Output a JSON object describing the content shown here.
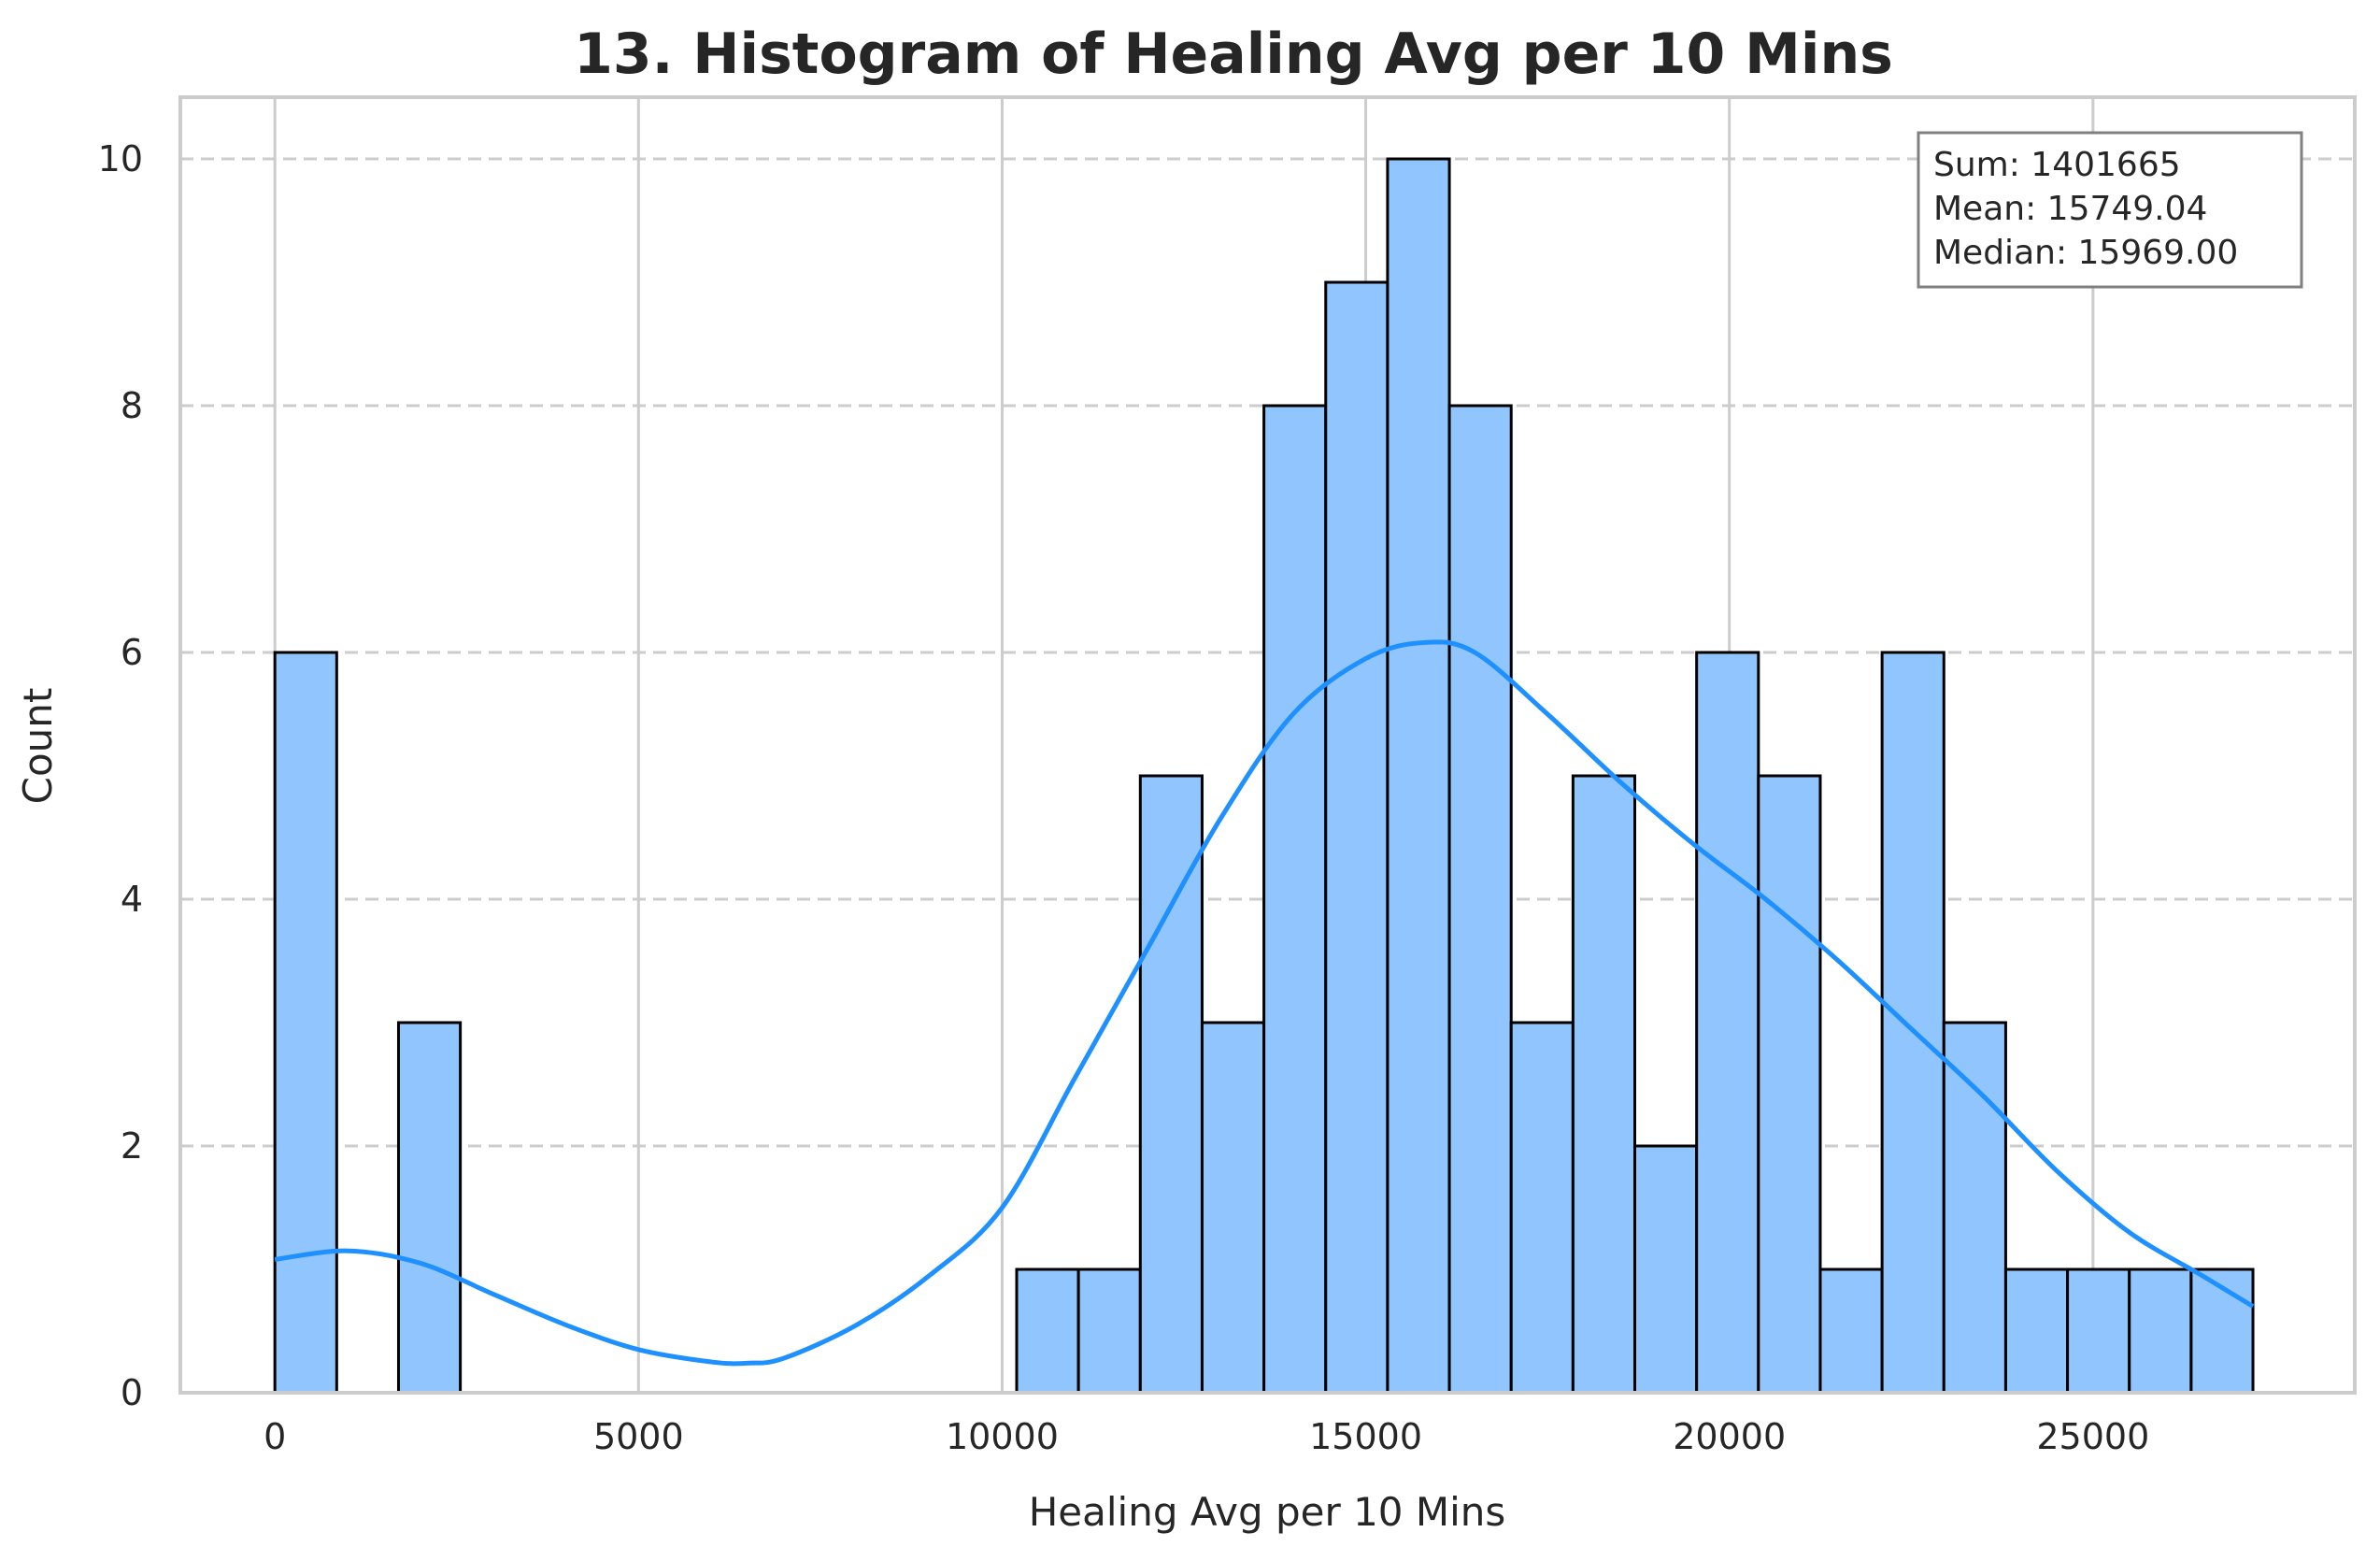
{
  "chart_data": {
    "type": "bar",
    "title": "13. Histogram of Healing Avg per 10 Mins",
    "xlabel": "Healing Avg per 10 Mins",
    "ylabel": "Count",
    "xlim": [
      -1300,
      28600
    ],
    "ylim": [
      0,
      10.5
    ],
    "xticks": [
      0,
      5000,
      10000,
      15000,
      20000,
      25000
    ],
    "yticks": [
      0,
      2,
      4,
      6,
      8,
      10
    ],
    "grid": true,
    "bin_start": 0,
    "bin_width": 850,
    "bins": [
      {
        "x0": 0,
        "count": 6
      },
      {
        "x0": 1700,
        "count": 3
      },
      {
        "x0": 10200,
        "count": 1
      },
      {
        "x0": 11050,
        "count": 1
      },
      {
        "x0": 11900,
        "count": 5
      },
      {
        "x0": 12750,
        "count": 3
      },
      {
        "x0": 13600,
        "count": 8
      },
      {
        "x0": 14450,
        "count": 9
      },
      {
        "x0": 15300,
        "count": 10
      },
      {
        "x0": 16150,
        "count": 8
      },
      {
        "x0": 17000,
        "count": 3
      },
      {
        "x0": 17850,
        "count": 5
      },
      {
        "x0": 18700,
        "count": 2
      },
      {
        "x0": 19550,
        "count": 6
      },
      {
        "x0": 20400,
        "count": 5
      },
      {
        "x0": 21250,
        "count": 1
      },
      {
        "x0": 22100,
        "count": 6
      },
      {
        "x0": 22950,
        "count": 3
      },
      {
        "x0": 23800,
        "count": 1
      },
      {
        "x0": 24650,
        "count": 1
      },
      {
        "x0": 25500,
        "count": 1
      },
      {
        "x0": 26350,
        "count": 1
      }
    ],
    "kde": {
      "x": [
        0,
        1000,
        2000,
        3000,
        4000,
        5000,
        6000,
        6500,
        7000,
        8000,
        9000,
        10000,
        11000,
        12000,
        13000,
        14000,
        15000,
        15800,
        16500,
        17500,
        18500,
        19500,
        20500,
        21500,
        22500,
        23500,
        24500,
        25500,
        26500,
        27200
      ],
      "y": [
        1.08,
        1.15,
        1.05,
        0.8,
        0.55,
        0.35,
        0.25,
        0.24,
        0.28,
        0.55,
        0.95,
        1.5,
        2.55,
        3.6,
        4.65,
        5.5,
        5.95,
        6.08,
        6.0,
        5.5,
        4.95,
        4.45,
        4.0,
        3.5,
        2.95,
        2.4,
        1.8,
        1.3,
        0.95,
        0.7
      ]
    },
    "colors": {
      "bar_fill": "#90c5fd",
      "bar_edge": "#000000",
      "kde_line": "#1e90ff",
      "grid": "#cccccc",
      "spine": "#cccccc",
      "text": "#262626"
    },
    "stats": {
      "sum_label": "Sum: 1401665",
      "mean_label": "Mean: 15749.04",
      "median_label": "Median: 15969.00"
    },
    "stats_box_position": "top-right"
  }
}
